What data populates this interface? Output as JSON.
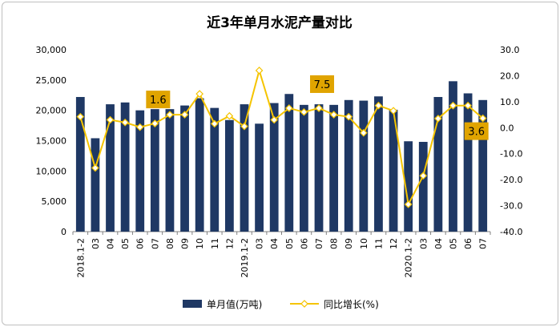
{
  "chart_data": {
    "type": "bar+line",
    "title": "近3年单月水泥产量对比",
    "categories": [
      "2018.1-2",
      "03",
      "04",
      "05",
      "06",
      "07",
      "08",
      "09",
      "10",
      "11",
      "12",
      "2019.1-2",
      "03",
      "04",
      "05",
      "06",
      "07",
      "08",
      "09",
      "10",
      "11",
      "12",
      "2020.1-2",
      "03",
      "04",
      "05",
      "06",
      "07"
    ],
    "series": [
      {
        "name": "单月值(万吨)",
        "type": "bar",
        "axis": "left",
        "color": "#1f3864",
        "values": [
          22200,
          15400,
          21000,
          21300,
          20000,
          20200,
          20200,
          20800,
          22000,
          20400,
          18400,
          21000,
          17800,
          21200,
          22700,
          20900,
          21000,
          20900,
          21700,
          21600,
          22300,
          20100,
          14900,
          14800,
          22200,
          24800,
          22800,
          21700
        ]
      },
      {
        "name": "同比增长(%)",
        "type": "line",
        "axis": "right",
        "color": "#f5c400",
        "values": [
          4.2,
          -15.5,
          3.0,
          2.0,
          0.2,
          1.6,
          5.0,
          5.0,
          13.0,
          1.5,
          4.5,
          0.5,
          22.0,
          3.0,
          7.5,
          6.0,
          7.5,
          5.0,
          4.2,
          -2.0,
          8.5,
          6.5,
          -29.5,
          -18.5,
          3.5,
          8.5,
          8.5,
          3.6
        ]
      }
    ],
    "y_left": {
      "ylim": [
        0,
        30000
      ],
      "ticks": [
        "0",
        "5,000",
        "10,000",
        "15,000",
        "20,000",
        "25,000",
        "30,000"
      ]
    },
    "y_right": {
      "ylim": [
        -40,
        30
      ],
      "ticks": [
        "-40.0",
        "-30.0",
        "-20.0",
        "-10.0",
        "0.0",
        "10.0",
        "20.0",
        "30.0"
      ]
    },
    "annotations": [
      {
        "text": "1.6",
        "category_index": 5
      },
      {
        "text": "7.5",
        "category_index": 16
      },
      {
        "text": "3.6",
        "category_index": 27
      }
    ],
    "grid": false,
    "legend_position": "bottom"
  }
}
